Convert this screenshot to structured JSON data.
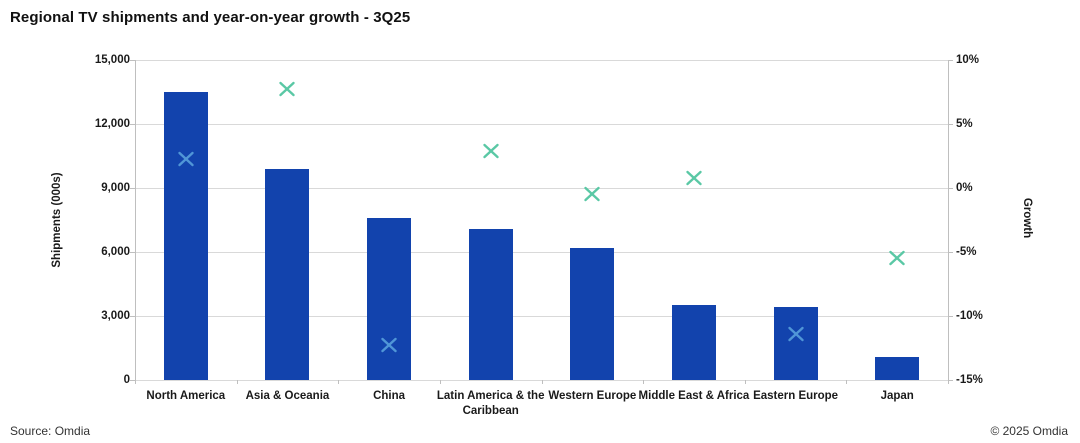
{
  "title": "Regional TV shipments and year-on-year growth - 3Q25",
  "footer": {
    "source": "Source: Omdia",
    "copyright": "© 2025 Omdia"
  },
  "colors": {
    "bar": "#1243ad",
    "marker_default": "#5ac8a5",
    "marker_on_bar": "#5096d7",
    "gridline": "#d9d9d9",
    "axis_line": "#bfbfbf",
    "text": "#1a1a1a"
  },
  "chart_data": {
    "type": "bar",
    "subtype": "combo-bar-with-scatter-x-markers",
    "title": "Regional TV shipments and year-on-year growth - 3Q25",
    "categories": [
      "North America",
      "Asia & Oceania",
      "China",
      "Latin America & the Caribbean",
      "Western Europe",
      "Middle East & Africa",
      "Eastern Europe",
      "Japan"
    ],
    "series": [
      {
        "name": "Shipments (000s)",
        "type": "bar",
        "axis": "left",
        "values": [
          13500,
          9900,
          7600,
          7100,
          6200,
          3500,
          3400,
          1100
        ]
      },
      {
        "name": "Growth",
        "type": "scatter",
        "marker": "x",
        "axis": "right",
        "values": [
          2.3,
          7.7,
          -12.3,
          2.9,
          -0.5,
          0.8,
          -11.4,
          -5.5
        ]
      }
    ],
    "left_axis": {
      "label": "Shipments (000s)",
      "min": 0,
      "max": 15000,
      "step": 3000,
      "tick_labels": [
        "0",
        "3,000",
        "6,000",
        "9,000",
        "12,000",
        "15,000"
      ]
    },
    "right_axis": {
      "label": "Growth",
      "min": -15,
      "max": 10,
      "step": 5,
      "tick_labels": [
        "-15%",
        "-10%",
        "-5%",
        "0%",
        "5%",
        "10%"
      ]
    },
    "grid": true,
    "legend": "none"
  }
}
